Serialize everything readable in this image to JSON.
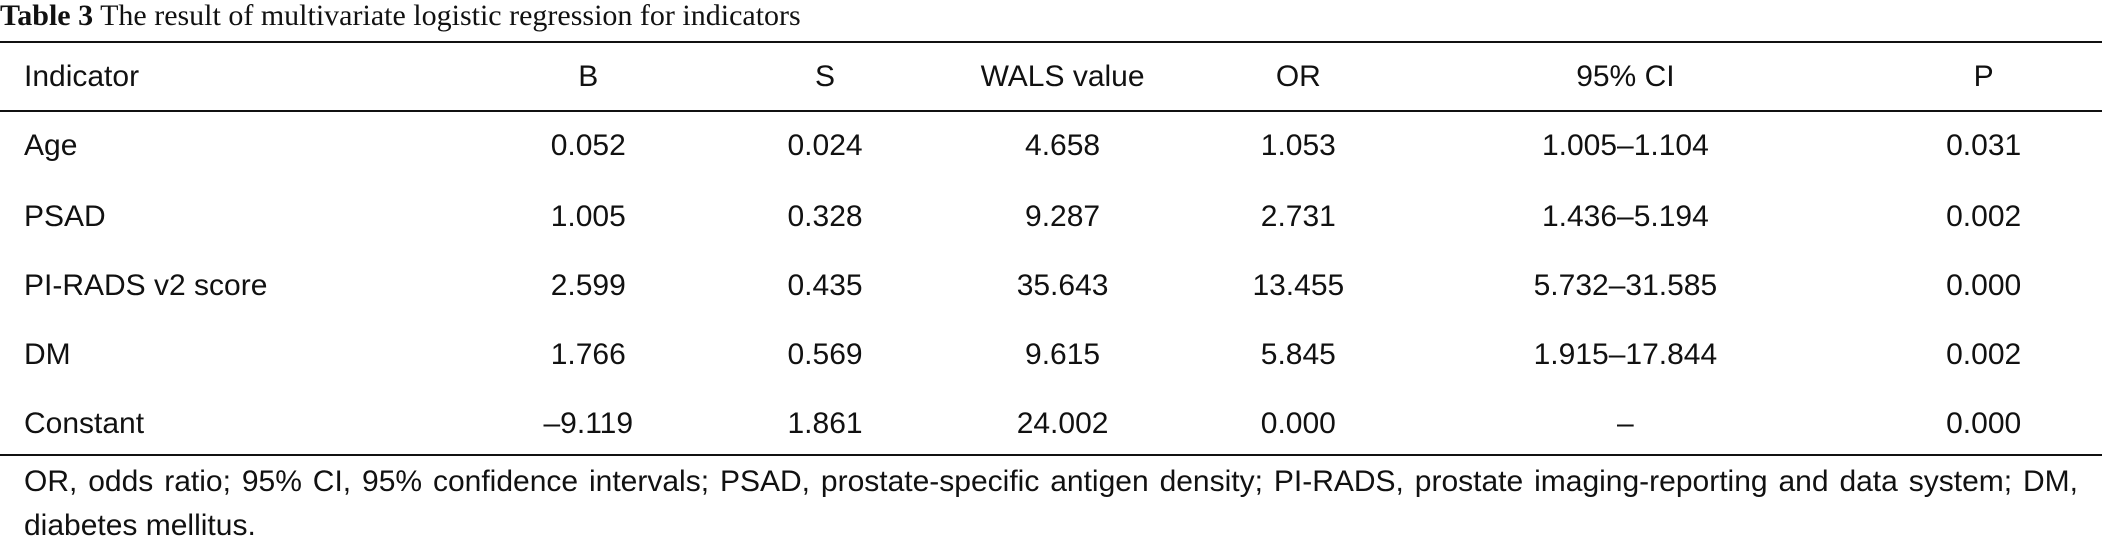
{
  "caption": {
    "label": "Table 3",
    "text": "The result of multivariate logistic regression for indicators"
  },
  "table": {
    "headers": [
      "Indicator",
      "B",
      "S",
      "WALS value",
      "OR",
      "95% CI",
      "P"
    ],
    "rows": [
      [
        "Age",
        "0.052",
        "0.024",
        "4.658",
        "1.053",
        "1.005–1.104",
        "0.031"
      ],
      [
        "PSAD",
        "1.005",
        "0.328",
        "9.287",
        "2.731",
        "1.436–5.194",
        "0.002"
      ],
      [
        "PI-RADS v2 score",
        "2.599",
        "0.435",
        "35.643",
        "13.455",
        "5.732–31.585",
        "0.000"
      ],
      [
        "DM",
        "1.766",
        "0.569",
        "9.615",
        "5.845",
        "1.915–17.844",
        "0.002"
      ],
      [
        "Constant",
        "–9.119",
        "1.861",
        "24.002",
        "0.000",
        "–",
        "0.000"
      ]
    ]
  },
  "footnote": "OR, odds ratio; 95% CI, 95% confidence intervals; PSAD, prostate-specific antigen density; PI-RADS, prostate imaging-reporting and data system; DM, diabetes mellitus."
}
